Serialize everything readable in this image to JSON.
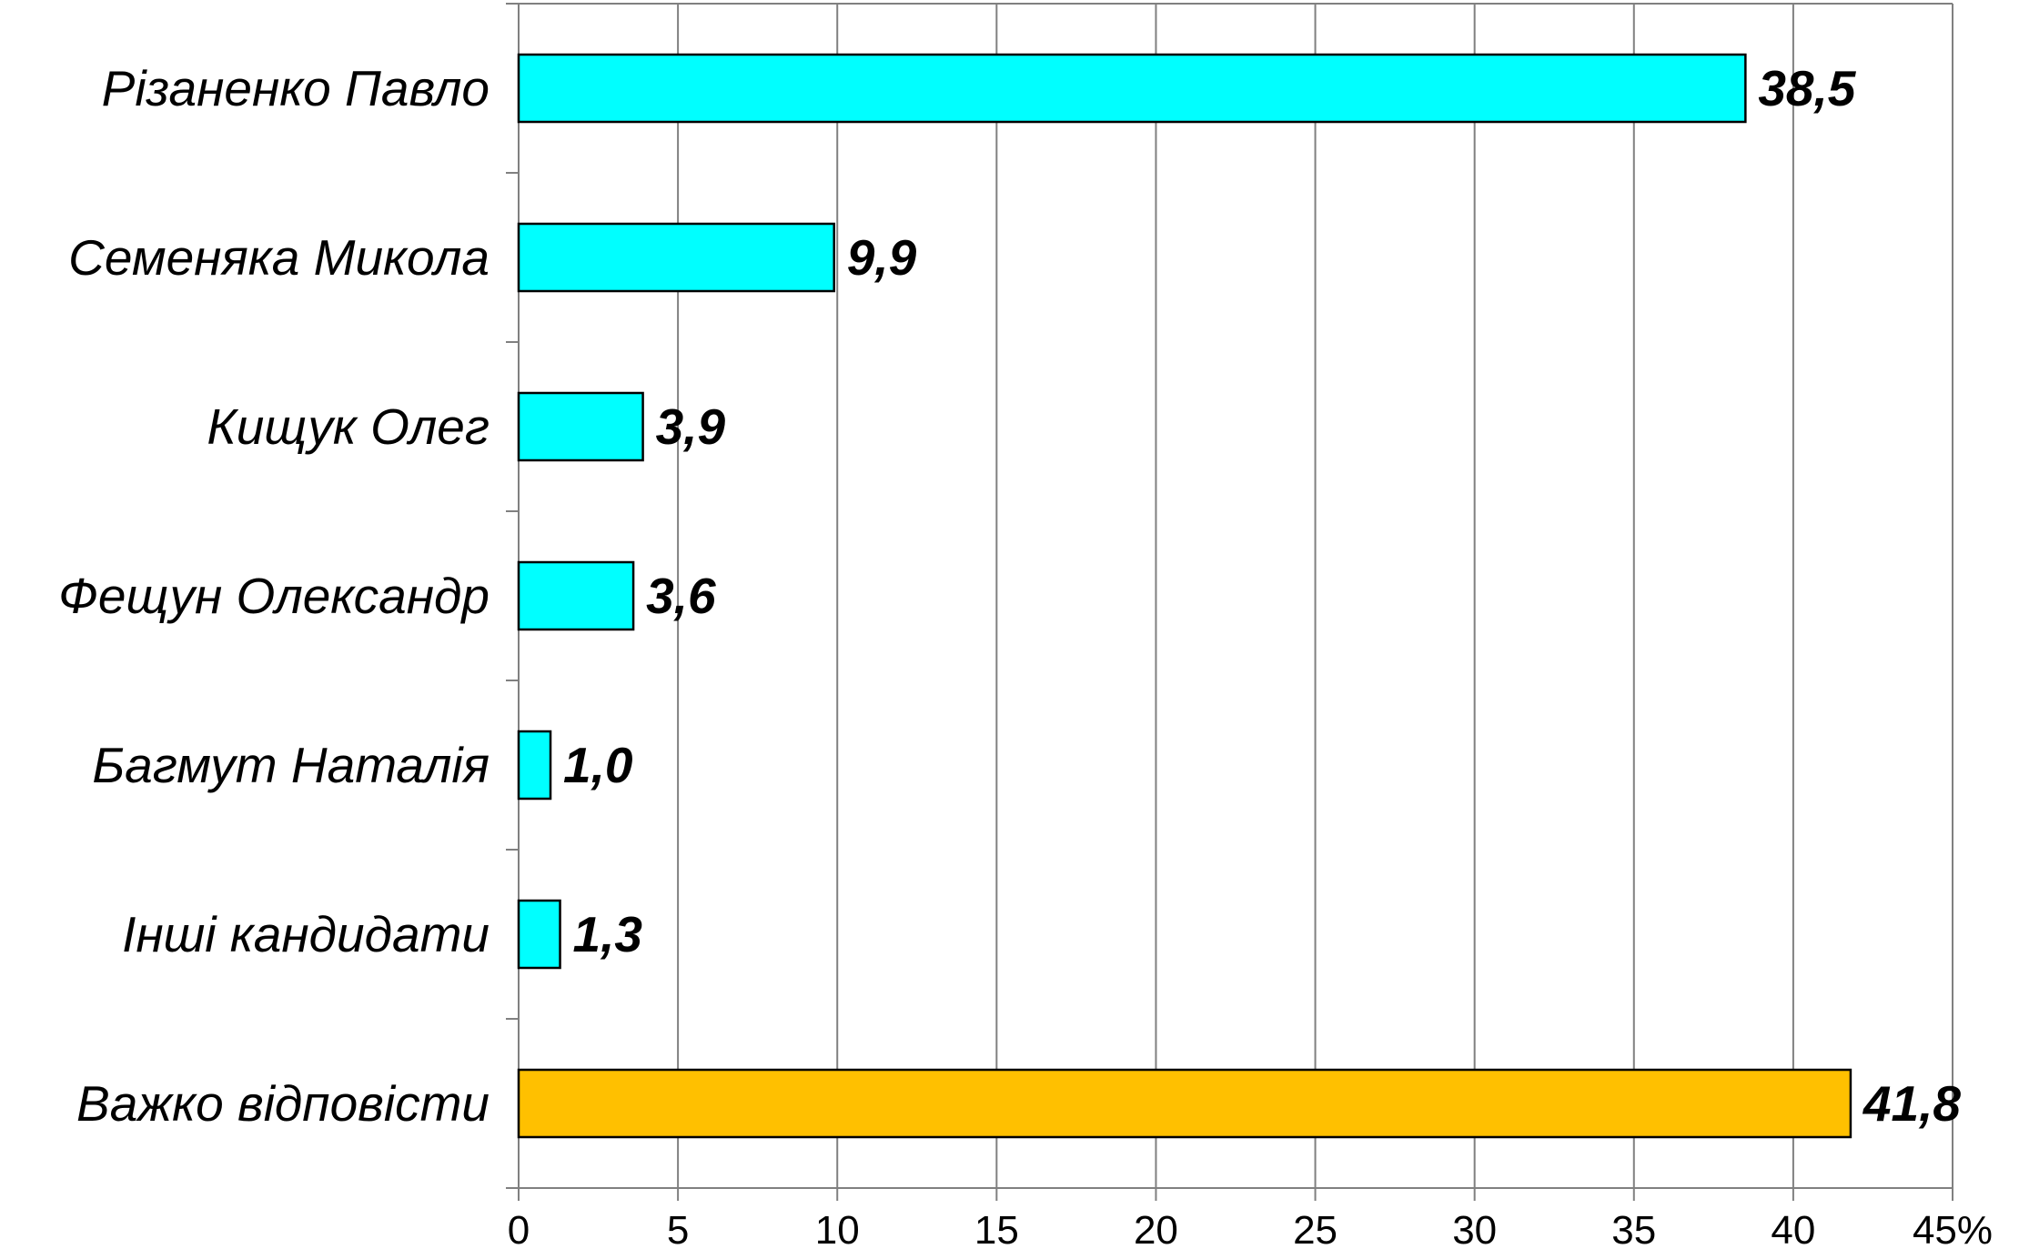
{
  "chart_data": {
    "type": "bar",
    "orientation": "horizontal",
    "categories": [
      "Різаненко Павло",
      "Семеняка Микола",
      "Кищук Олег",
      "Фещун Олександр",
      "Багмут Наталія",
      "Інші кандидати",
      "Важко відповісти"
    ],
    "values": [
      38.5,
      9.9,
      3.9,
      3.6,
      1.0,
      1.3,
      41.8
    ],
    "value_labels": [
      "38,5",
      "9,9",
      "3,9",
      "3,6",
      "1,0",
      "1,3",
      "41,8"
    ],
    "bar_colors": [
      "#00FFFF",
      "#00FFFF",
      "#00FFFF",
      "#00FFFF",
      "#00FFFF",
      "#00FFFF",
      "#FFC000"
    ],
    "xlim": [
      0,
      45
    ],
    "x_ticks": [
      0,
      5,
      10,
      15,
      20,
      25,
      30,
      35,
      40,
      45
    ],
    "x_tick_labels": [
      "0",
      "5",
      "10",
      "15",
      "20",
      "25",
      "30",
      "35",
      "40",
      "45%"
    ],
    "grid": true,
    "grid_color": "#808080",
    "title": "",
    "xlabel": "",
    "ylabel": ""
  }
}
